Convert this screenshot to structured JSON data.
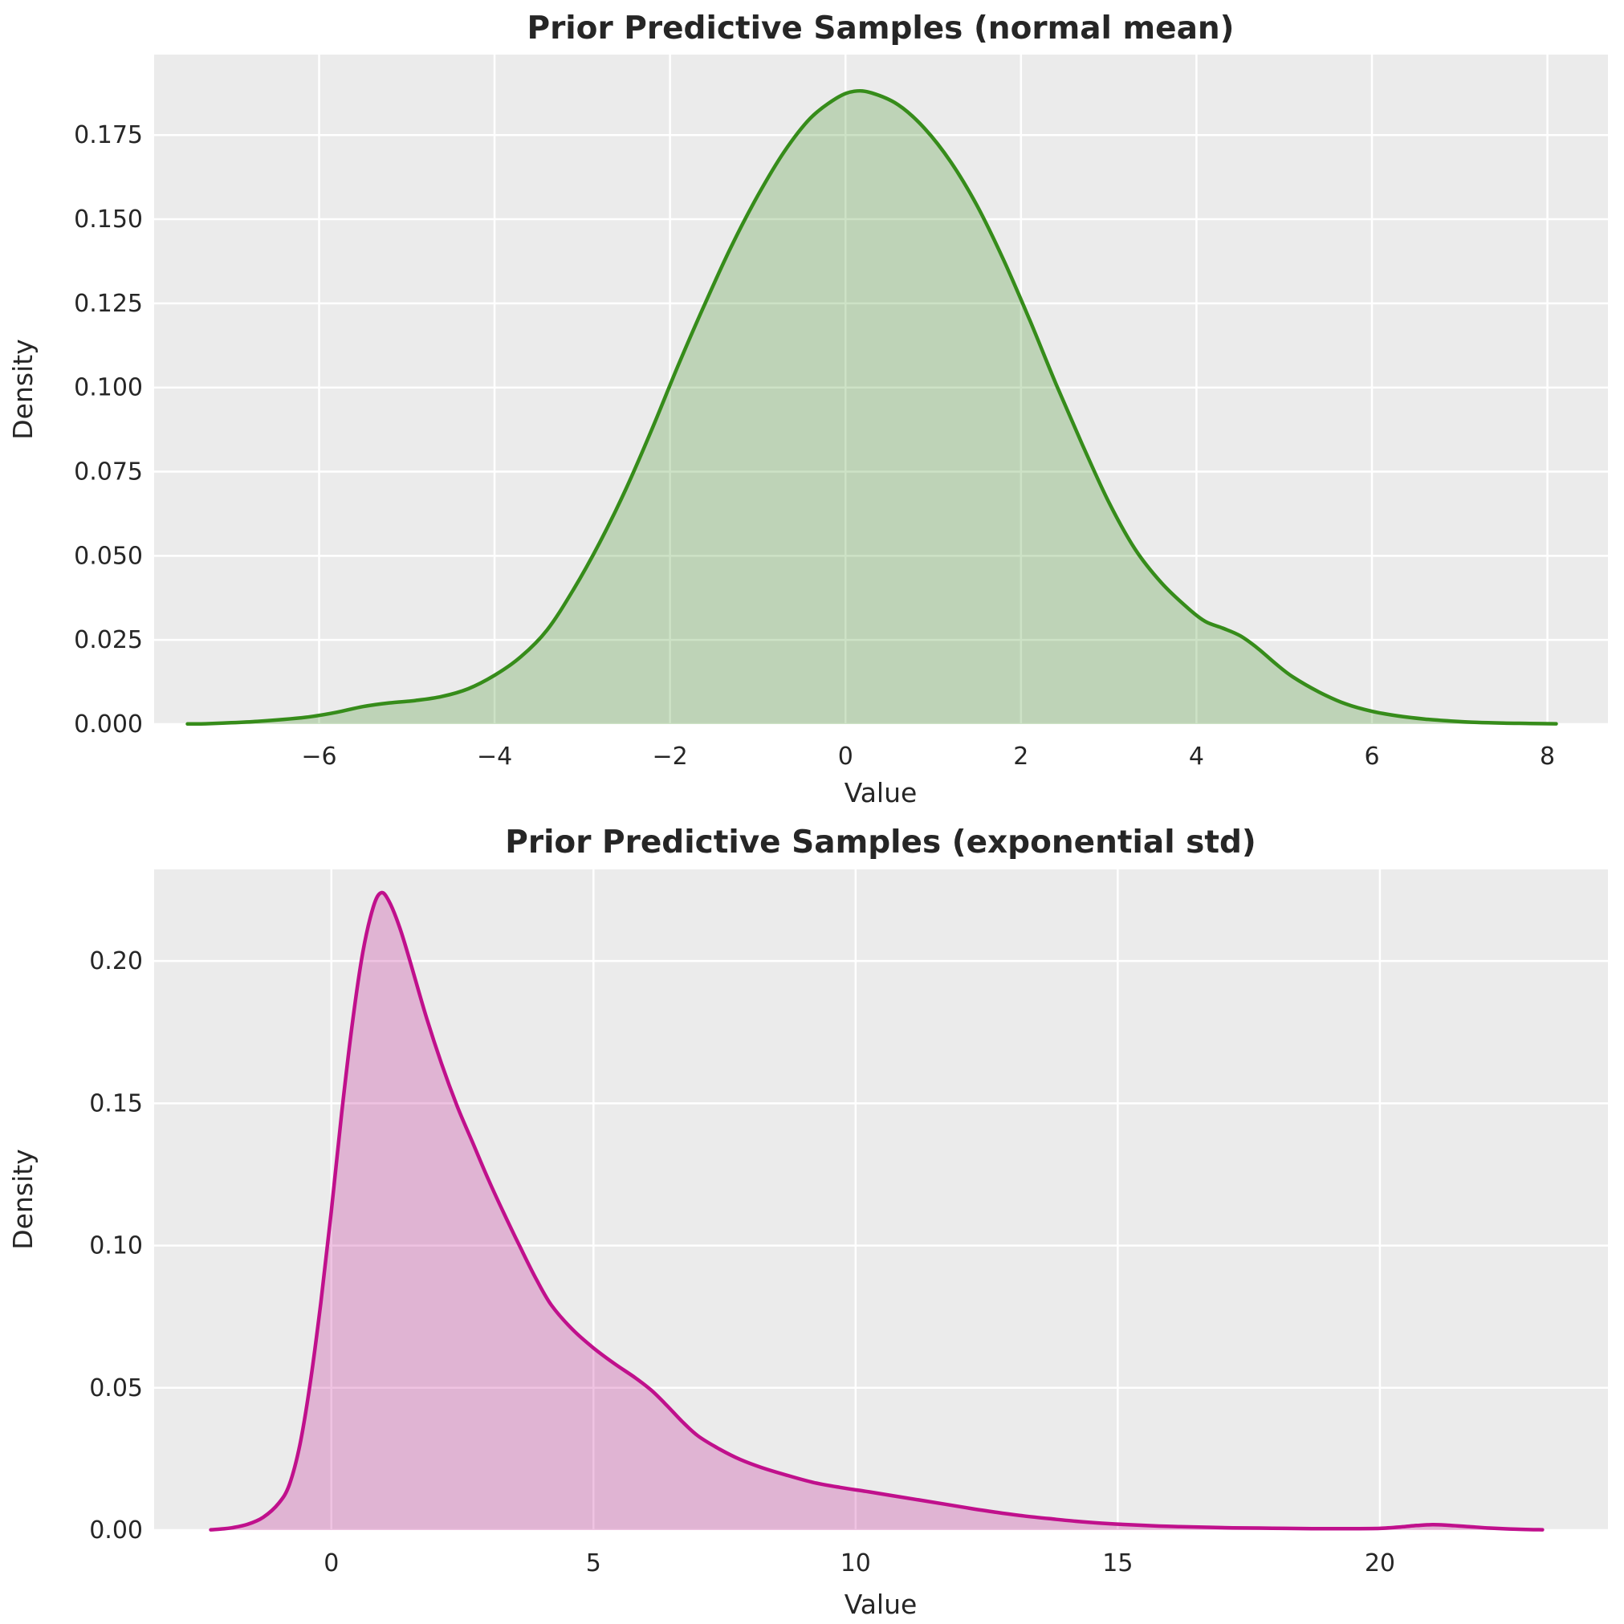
{
  "figure": {
    "background": "#ffffff",
    "axes_background": "#ebebeb",
    "grid_color": "#ffffff",
    "text_color": "#262626"
  },
  "chart_data": [
    {
      "type": "area",
      "kind": "kde-density",
      "title": "Prior Predictive Samples (normal mean)",
      "xlabel": "Value",
      "ylabel": "Density",
      "line_color": "#368c1a",
      "fill_opacity": 0.25,
      "grid": true,
      "legend": false,
      "xlim": [
        -7.88,
        8.69
      ],
      "ylim": [
        0,
        0.1989
      ],
      "xticks": [
        -6,
        -4,
        -2,
        0,
        2,
        4,
        6,
        8
      ],
      "xtick_labels": [
        "−6",
        "−4",
        "−2",
        "0",
        "2",
        "4",
        "6",
        "8"
      ],
      "yticks": [
        0.0,
        0.025,
        0.05,
        0.075,
        0.1,
        0.125,
        0.15,
        0.175
      ],
      "ytick_labels": [
        "0.000",
        "0.025",
        "0.050",
        "0.075",
        "0.100",
        "0.125",
        "0.150",
        "0.175"
      ],
      "points": {
        "x": [
          -7.5,
          -7.3,
          -7.0,
          -6.7,
          -6.4,
          -6.1,
          -5.8,
          -5.5,
          -5.2,
          -4.9,
          -4.6,
          -4.3,
          -4.0,
          -3.7,
          -3.4,
          -3.1,
          -2.8,
          -2.5,
          -2.2,
          -1.9,
          -1.6,
          -1.3,
          -1.0,
          -0.7,
          -0.4,
          -0.1,
          0.1,
          0.3,
          0.6,
          0.9,
          1.2,
          1.5,
          1.8,
          2.1,
          2.4,
          2.7,
          3.0,
          3.3,
          3.6,
          3.9,
          4.1,
          4.3,
          4.5,
          4.7,
          4.9,
          5.1,
          5.4,
          5.7,
          6.0,
          6.3,
          6.6,
          6.9,
          7.2,
          7.5,
          7.8,
          8.1
        ],
        "y": [
          5e-05,
          0.0001,
          0.0004,
          0.0008,
          0.0014,
          0.0022,
          0.0035,
          0.0052,
          0.0063,
          0.007,
          0.0082,
          0.0105,
          0.0145,
          0.02,
          0.028,
          0.04,
          0.054,
          0.07,
          0.088,
          0.107,
          0.125,
          0.142,
          0.157,
          0.17,
          0.18,
          0.186,
          0.188,
          0.1875,
          0.184,
          0.177,
          0.167,
          0.154,
          0.138,
          0.12,
          0.101,
          0.083,
          0.066,
          0.052,
          0.042,
          0.0345,
          0.0305,
          0.0285,
          0.0262,
          0.0225,
          0.018,
          0.014,
          0.0095,
          0.006,
          0.0038,
          0.0024,
          0.0015,
          0.0009,
          0.0005,
          0.0003,
          0.0002,
          0.0001
        ]
      }
    },
    {
      "type": "area",
      "kind": "kde-density",
      "title": "Prior Predictive Samples (exponential std)",
      "xlabel": "Value",
      "ylabel": "Density",
      "line_color": "#c0108c",
      "fill_opacity": 0.25,
      "grid": true,
      "legend": false,
      "xlim": [
        -3.38,
        24.35
      ],
      "ylim": [
        0,
        0.2322
      ],
      "xticks": [
        0,
        5,
        10,
        15,
        20
      ],
      "xtick_labels": [
        "0",
        "5",
        "10",
        "15",
        "20"
      ],
      "yticks": [
        0.0,
        0.05,
        0.1,
        0.15,
        0.2
      ],
      "ytick_labels": [
        "0.00",
        "0.05",
        "0.10",
        "0.15",
        "0.20"
      ],
      "points": {
        "x": [
          -2.3,
          -2.1,
          -1.9,
          -1.6,
          -1.3,
          -1.0,
          -0.8,
          -0.6,
          -0.4,
          -0.2,
          0.0,
          0.2,
          0.4,
          0.6,
          0.8,
          0.95,
          1.1,
          1.3,
          1.5,
          1.8,
          2.1,
          2.4,
          2.7,
          3.0,
          3.3,
          3.6,
          3.9,
          4.2,
          4.6,
          5.0,
          5.4,
          5.8,
          6.1,
          6.4,
          6.7,
          7.0,
          7.4,
          7.8,
          8.2,
          8.7,
          9.2,
          9.7,
          10.2,
          10.7,
          11.2,
          11.7,
          12.2,
          12.7,
          13.2,
          13.7,
          14.2,
          14.7,
          15.2,
          15.7,
          16.2,
          16.7,
          17.2,
          17.7,
          18.2,
          18.7,
          19.2,
          19.6,
          20.0,
          20.4,
          20.7,
          21.0,
          21.3,
          21.7,
          22.1,
          22.6,
          23.1
        ],
        "y": [
          0.0001,
          0.0004,
          0.0008,
          0.002,
          0.0045,
          0.0095,
          0.016,
          0.03,
          0.052,
          0.08,
          0.112,
          0.147,
          0.178,
          0.203,
          0.219,
          0.224,
          0.221,
          0.212,
          0.2,
          0.181,
          0.164,
          0.149,
          0.136,
          0.123,
          0.111,
          0.0995,
          0.0885,
          0.079,
          0.0705,
          0.064,
          0.0585,
          0.0535,
          0.0492,
          0.0438,
          0.038,
          0.033,
          0.0285,
          0.0248,
          0.022,
          0.0192,
          0.0167,
          0.015,
          0.0136,
          0.0121,
          0.0106,
          0.0091,
          0.0076,
          0.0062,
          0.005,
          0.004,
          0.0031,
          0.0024,
          0.0019,
          0.0015,
          0.0012,
          0.001,
          0.0008,
          0.0007,
          0.0006,
          0.0005,
          0.0005,
          0.0005,
          0.0006,
          0.0011,
          0.0016,
          0.0019,
          0.0017,
          0.0012,
          0.0007,
          0.0003,
          0.0001
        ]
      }
    }
  ]
}
